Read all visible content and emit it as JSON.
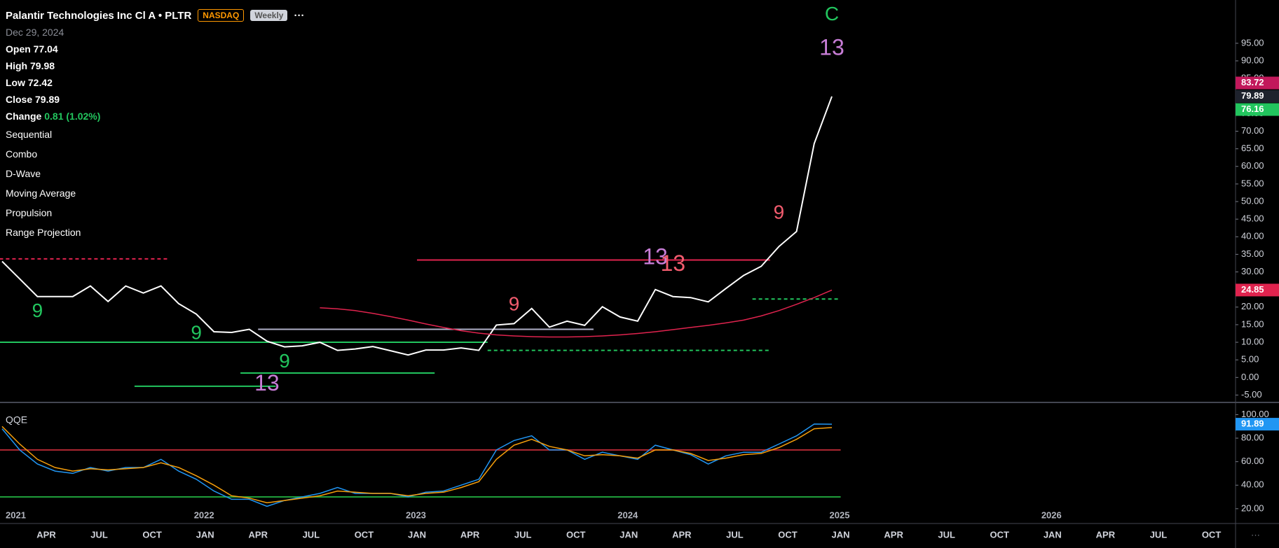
{
  "header": {
    "title": "Palantir Technologies Inc Cl A • PLTR",
    "exchange": "NASDAQ",
    "interval": "Weekly",
    "menu": "···"
  },
  "legend": {
    "date": "Dec 29, 2024",
    "open": {
      "label": "Open",
      "value": 77.04
    },
    "high": {
      "label": "High",
      "value": 79.98
    },
    "low": {
      "label": "Low",
      "value": 72.42
    },
    "close": {
      "label": "Close",
      "value": 79.89
    },
    "change": {
      "label": "Change",
      "text": "0.81 (1.02%)"
    }
  },
  "indicators": [
    "Sequential",
    "Combo",
    "D-Wave",
    "Moving Average",
    "Propulsion",
    "Range Projection"
  ],
  "chart_data": [
    {
      "type": "line",
      "x": [
        "2021-01",
        "2021-02",
        "2021-03",
        "2021-04",
        "2021-05",
        "2021-06",
        "2021-07",
        "2021-08",
        "2021-09",
        "2021-10",
        "2021-11",
        "2021-12",
        "2022-01",
        "2022-02",
        "2022-03",
        "2022-04",
        "2022-05",
        "2022-06",
        "2022-07",
        "2022-08",
        "2022-09",
        "2022-10",
        "2022-11",
        "2022-12",
        "2023-01",
        "2023-02",
        "2023-03",
        "2023-04",
        "2023-05",
        "2023-06",
        "2023-07",
        "2023-08",
        "2023-09",
        "2023-10",
        "2023-11",
        "2023-12",
        "2024-01",
        "2024-02",
        "2024-03",
        "2024-04",
        "2024-05",
        "2024-06",
        "2024-07",
        "2024-08",
        "2024-09",
        "2024-10",
        "2024-11",
        "2024-12"
      ],
      "series": [
        {
          "color": "#ffffff",
          "values": [
            33,
            28,
            23,
            23,
            23,
            26,
            21.6,
            26,
            24,
            26,
            21,
            18,
            13,
            12.8,
            13.7,
            10.3,
            8.7,
            9,
            10,
            7.7,
            8.1,
            8.8,
            7.6,
            6.4,
            7.8,
            7.8,
            8.4,
            7.7,
            14.9,
            15.3,
            19.6,
            14.3,
            16,
            14.8,
            20.1,
            17.2,
            16,
            25,
            23,
            22.7,
            21.5,
            25.3,
            29,
            31.6,
            37.2,
            41.5,
            66.5,
            79.89
          ]
        },
        {
          "color": "#e0234e",
          "values": [
            null,
            null,
            null,
            null,
            null,
            null,
            null,
            null,
            null,
            null,
            null,
            null,
            null,
            null,
            null,
            null,
            null,
            null,
            19.8,
            19.5,
            19,
            18.2,
            17.3,
            16.3,
            15.2,
            14.2,
            13.3,
            12.6,
            12.1,
            11.8,
            11.6,
            11.5,
            11.5,
            11.6,
            11.8,
            12.1,
            12.5,
            13,
            13.6,
            14.2,
            14.8,
            15.5,
            16.3,
            17.5,
            19,
            20.8,
            22.7,
            24.85
          ]
        }
      ],
      "ylim": [
        -6.9,
        107.3
      ],
      "yticks": [
        {
          "value": 95,
          "label": "95.00"
        },
        {
          "value": 90,
          "label": "90.00"
        },
        {
          "value": 85,
          "label": "85.00"
        },
        {
          "value": 80,
          "label": "80.00"
        },
        {
          "value": 75,
          "label": "75.00"
        },
        {
          "value": 70,
          "label": "70.00"
        },
        {
          "value": 65,
          "label": "65.00"
        },
        {
          "value": 60,
          "label": "60.00"
        },
        {
          "value": 55,
          "label": "55.00"
        },
        {
          "value": 50,
          "label": "50.00"
        },
        {
          "value": 45,
          "label": "45.00"
        },
        {
          "value": 40,
          "label": "40.00"
        },
        {
          "value": 35,
          "label": "35.00"
        },
        {
          "value": 30,
          "label": "30.00"
        },
        {
          "value": 25,
          "label": "25.00"
        },
        {
          "value": 20,
          "label": "20.00"
        },
        {
          "value": 15,
          "label": "15.00"
        },
        {
          "value": 10,
          "label": "10.00"
        },
        {
          "value": 5,
          "label": "5.00"
        },
        {
          "value": 0,
          "label": "0.00"
        },
        {
          "value": -5,
          "label": "-5.00"
        }
      ],
      "price_tags": [
        {
          "value": 83.72,
          "color": "#c2185b"
        },
        {
          "value": 79.89,
          "color": "#1e222d"
        },
        {
          "value": 76.16,
          "color": "#22c55e"
        },
        {
          "value": 24.85,
          "color": "#e0234e"
        }
      ],
      "levels": [
        {
          "value": 33.4,
          "from": "2023-01",
          "to": "2024-08",
          "color": "#e0234e",
          "dash": false
        },
        {
          "value": 33.7,
          "from": "2021-01",
          "to": "2021-10",
          "color": "#e0234e",
          "dash": true
        },
        {
          "value": 22.3,
          "from": "2024-08",
          "to": "2024-12",
          "color": "#22c55e",
          "dash": true
        },
        {
          "value": 7.7,
          "from": "2023-05",
          "to": "2024-08",
          "color": "#22c55e",
          "dash": true
        },
        {
          "value": 10,
          "from": "2021-01",
          "to": "2023-04",
          "color": "#22c55e",
          "dash": false
        },
        {
          "value": -2.5,
          "from": "2021-09",
          "to": "2022-04",
          "color": "#22c55e",
          "dash": false
        },
        {
          "value": 1.25,
          "from": "2022-03",
          "to": "2023-01",
          "color": "#22c55e",
          "dash": false
        },
        {
          "value": 13.7,
          "from": "2022-04",
          "to": "2023-10",
          "color": "#b0b0c8",
          "dash": false
        }
      ],
      "annotations": [
        {
          "text": "9",
          "x": "2021-03",
          "y": 18.6,
          "color": "#22c55e"
        },
        {
          "text": "9",
          "x": "2021-12",
          "y": 12.4,
          "color": "#22c55e"
        },
        {
          "text": "13",
          "x": "2022-04",
          "y": -2,
          "color": "#c77dd6"
        },
        {
          "text": "9",
          "x": "2022-05",
          "y": 4.3,
          "color": "#22c55e"
        },
        {
          "text": "9",
          "x": "2023-06",
          "y": 20.5,
          "color": "#f25c6e"
        },
        {
          "text": "13",
          "x": "2024-02",
          "y": 33.9,
          "color": "#c77dd6"
        },
        {
          "text": "13",
          "x": "2024-03",
          "y": 32,
          "color": "#f25c6e"
        },
        {
          "text": "9",
          "x": "2024-09",
          "y": 46.6,
          "color": "#f25c6e"
        },
        {
          "text": "13",
          "x": "2024-12",
          "y": 93.4,
          "color": "#c77dd6"
        },
        {
          "text": "C",
          "x": "2024-12",
          "y": 103,
          "color": "#22c55e"
        }
      ]
    },
    {
      "type": "line",
      "title": "QQE",
      "x": [
        "2021-01",
        "2021-02",
        "2021-03",
        "2021-04",
        "2021-05",
        "2021-06",
        "2021-07",
        "2021-08",
        "2021-09",
        "2021-10",
        "2021-11",
        "2021-12",
        "2022-01",
        "2022-02",
        "2022-03",
        "2022-04",
        "2022-05",
        "2022-06",
        "2022-07",
        "2022-08",
        "2022-09",
        "2022-10",
        "2022-11",
        "2022-12",
        "2023-01",
        "2023-02",
        "2023-03",
        "2023-04",
        "2023-05",
        "2023-06",
        "2023-07",
        "2023-08",
        "2023-09",
        "2023-10",
        "2023-11",
        "2023-12",
        "2024-01",
        "2024-02",
        "2024-03",
        "2024-04",
        "2024-05",
        "2024-06",
        "2024-07",
        "2024-08",
        "2024-09",
        "2024-10",
        "2024-11",
        "2024-12"
      ],
      "series": [
        {
          "color": "#2196f3",
          "values": [
            88,
            70,
            58,
            52,
            50,
            55,
            52,
            55,
            55,
            62,
            52,
            45,
            35,
            28,
            28,
            22,
            27,
            30,
            33,
            38,
            33,
            33,
            33,
            30,
            34,
            35,
            40,
            45,
            70,
            78,
            82,
            70,
            70,
            62,
            68,
            65,
            62,
            74,
            70,
            66,
            58,
            65,
            68,
            68,
            75,
            82,
            92,
            91.89
          ]
        },
        {
          "color": "#f59e0b",
          "values": [
            90,
            75,
            62,
            55,
            52,
            54,
            53,
            54,
            55,
            59,
            55,
            48,
            40,
            31,
            29,
            25,
            27,
            29,
            31,
            35,
            34,
            33,
            33,
            31,
            33,
            34,
            38,
            43,
            62,
            74,
            79,
            73,
            70,
            65,
            66,
            65,
            63,
            70,
            70,
            67,
            61,
            63,
            66,
            67,
            72,
            79,
            88,
            89
          ]
        }
      ],
      "ylim": [
        7.4,
        109.8
      ],
      "yticks": [
        {
          "value": 100,
          "label": "100.00"
        },
        {
          "value": 80,
          "label": "80.00"
        },
        {
          "value": 60,
          "label": "60.00"
        },
        {
          "value": 40,
          "label": "40.00"
        },
        {
          "value": 20,
          "label": "20.00"
        }
      ],
      "price_tags": [
        {
          "value": 91.89,
          "color": "#2196f3"
        }
      ],
      "levels": [
        {
          "value": 70,
          "from": "2021-01",
          "to": "2024-12",
          "color": "#b22833",
          "dash": false
        },
        {
          "value": 30,
          "from": "2021-01",
          "to": "2024-12",
          "color": "#1f9d3a",
          "dash": false
        }
      ]
    }
  ],
  "time_axis": {
    "years": [
      {
        "value": "2021-01",
        "label": "2021"
      },
      {
        "value": "2022-01",
        "label": "2022"
      },
      {
        "value": "2023-01",
        "label": "2023"
      },
      {
        "value": "2024-01",
        "label": "2024"
      },
      {
        "value": "2025-01",
        "label": "2025"
      },
      {
        "value": "2026-01",
        "label": "2026"
      }
    ],
    "months": [
      {
        "value": "2021-04",
        "label": "APR"
      },
      {
        "value": "2021-07",
        "label": "JUL"
      },
      {
        "value": "2021-10",
        "label": "OCT"
      },
      {
        "value": "2022-01",
        "label": "JAN"
      },
      {
        "value": "2022-04",
        "label": "APR"
      },
      {
        "value": "2022-07",
        "label": "JUL"
      },
      {
        "value": "2022-10",
        "label": "OCT"
      },
      {
        "value": "2023-01",
        "label": "JAN"
      },
      {
        "value": "2023-04",
        "label": "APR"
      },
      {
        "value": "2023-07",
        "label": "JUL"
      },
      {
        "value": "2023-10",
        "label": "OCT"
      },
      {
        "value": "2024-01",
        "label": "JAN"
      },
      {
        "value": "2024-04",
        "label": "APR"
      },
      {
        "value": "2024-07",
        "label": "JUL"
      },
      {
        "value": "2024-10",
        "label": "OCT"
      },
      {
        "value": "2025-01",
        "label": "JAN"
      },
      {
        "value": "2025-04",
        "label": "APR"
      },
      {
        "value": "2025-07",
        "label": "JUL"
      },
      {
        "value": "2025-10",
        "label": "OCT"
      },
      {
        "value": "2026-01",
        "label": "JAN"
      },
      {
        "value": "2026-04",
        "label": "APR"
      },
      {
        "value": "2026-07",
        "label": "JUL"
      },
      {
        "value": "2026-10",
        "label": "OCT"
      }
    ],
    "more": "···"
  }
}
